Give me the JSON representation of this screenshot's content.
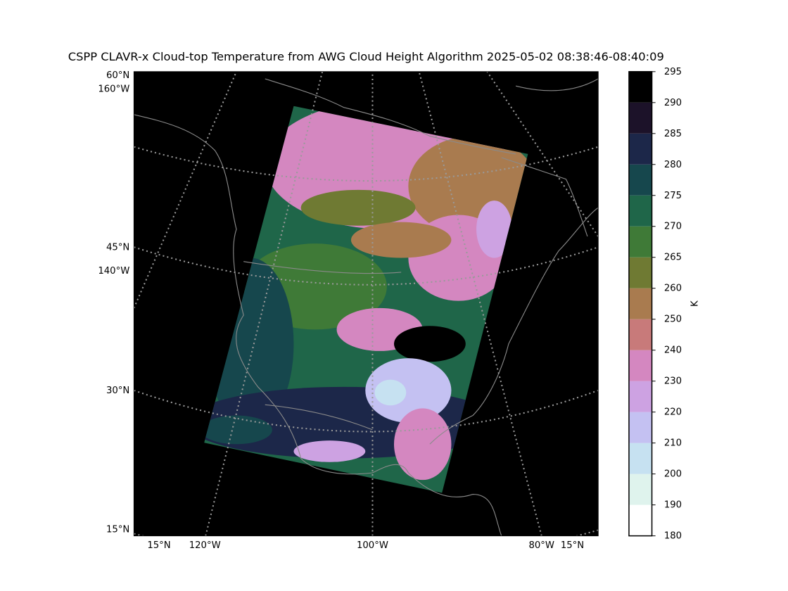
{
  "title": "CSPP CLAVR-x Cloud-top Temperature from AWG Cloud Height Algorithm 2025-05-02 08:38:46-08:40:09",
  "map": {
    "left_labels": [
      "60°N",
      "160°W",
      "45°N",
      "140°W",
      "30°N",
      "15°N"
    ],
    "bottom_labels": [
      "15°N",
      "120°W",
      "100°W",
      "80°W",
      "15°N"
    ]
  },
  "colorbar": {
    "label": "K",
    "ticks": [
      180,
      190,
      200,
      210,
      220,
      230,
      240,
      250,
      260,
      265,
      270,
      275,
      280,
      285,
      290,
      295
    ],
    "colors": [
      "#ffffff",
      "#dff3ed",
      "#c6e1f1",
      "#c4c1f2",
      "#cda2e2",
      "#d487c0",
      "#c87a7a",
      "#a97b4f",
      "#6f7a33",
      "#3f7a37",
      "#1f6649",
      "#16474d",
      "#1c2749",
      "#1c1229",
      "#000000"
    ]
  }
}
